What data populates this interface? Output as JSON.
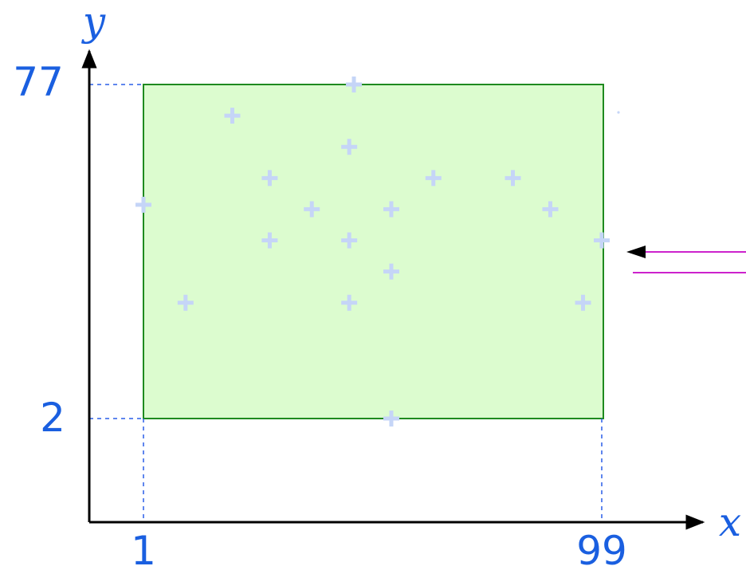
{
  "colors": {
    "axis": "#000000",
    "label": "#1a5fe0",
    "guide": "#2a5fe8",
    "rect_fill": "#dcfccf",
    "rect_stroke": "#1f8a1f",
    "point": "#c5d5f7",
    "arrow": "#cc22cc"
  },
  "axes": {
    "x_name": "x",
    "y_name": "y",
    "x_min_label": "1",
    "x_max_label": "99",
    "y_min_label": "2",
    "y_max_label": "77"
  },
  "rectangle": {
    "x_min": 1,
    "x_max": 99,
    "y_min": 2,
    "y_max": 77
  },
  "points": [
    {
      "x": 46,
      "y": 77
    },
    {
      "x": 20,
      "y": 70
    },
    {
      "x": 45,
      "y": 63
    },
    {
      "x": 1,
      "y": 50
    },
    {
      "x": 28,
      "y": 56
    },
    {
      "x": 37,
      "y": 49
    },
    {
      "x": 54,
      "y": 49
    },
    {
      "x": 63,
      "y": 56
    },
    {
      "x": 80,
      "y": 56
    },
    {
      "x": 88,
      "y": 49
    },
    {
      "x": 28,
      "y": 42
    },
    {
      "x": 45,
      "y": 42
    },
    {
      "x": 99,
      "y": 42
    },
    {
      "x": 54,
      "y": 35
    },
    {
      "x": 10,
      "y": 28
    },
    {
      "x": 45,
      "y": 28
    },
    {
      "x": 95,
      "y": 28
    },
    {
      "x": 54,
      "y": 2
    }
  ]
}
